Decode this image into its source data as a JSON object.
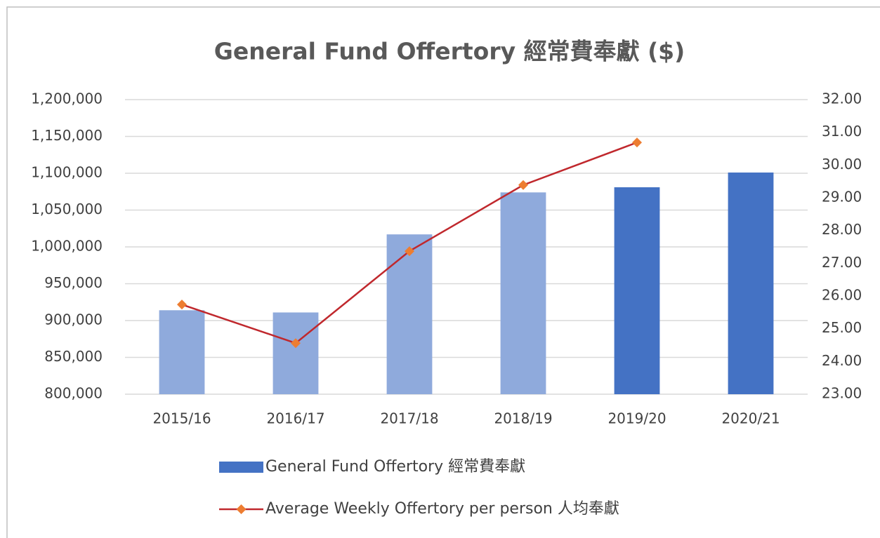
{
  "chart_data": {
    "type": "bar",
    "title": "General Fund Offertory 經常費奉獻 ($)",
    "categories": [
      "2015/16",
      "2016/17",
      "2017/18",
      "2018/19",
      "2019/20",
      "2020/21"
    ],
    "series": [
      {
        "name": "General Fund Offertory 經常費奉獻",
        "type": "bar",
        "color": "#4472c4",
        "colors": [
          "#8faadc",
          "#8faadc",
          "#8faadc",
          "#8faadc",
          "#4472c4",
          "#4472c4"
        ],
        "values": [
          914000,
          911000,
          1017000,
          1074000,
          1081000,
          1101000
        ]
      },
      {
        "name": "Average Weekly Offertory per person 人均奉獻",
        "type": "line",
        "axis": "y2",
        "color": "#c0282d",
        "marker_color": "#ed7d31",
        "values": [
          25.74,
          24.56,
          27.37,
          29.39,
          30.69,
          null
        ]
      }
    ],
    "ylim": [
      800000,
      1200000
    ],
    "yticks": [
      {
        "value": 800000,
        "label": "800,000"
      },
      {
        "value": 850000,
        "label": "850,000"
      },
      {
        "value": 900000,
        "label": "900,000"
      },
      {
        "value": 950000,
        "label": "950,000"
      },
      {
        "value": 1000000,
        "label": "1,000,000"
      },
      {
        "value": 1050000,
        "label": "1,050,000"
      },
      {
        "value": 1100000,
        "label": "1,100,000"
      },
      {
        "value": 1150000,
        "label": "1,150,000"
      },
      {
        "value": 1200000,
        "label": "1,200,000"
      }
    ],
    "y2lim": [
      23,
      32
    ],
    "y2ticks": [
      {
        "value": 23,
        "label": "23.00"
      },
      {
        "value": 24,
        "label": "24.00"
      },
      {
        "value": 25,
        "label": "25.00"
      },
      {
        "value": 26,
        "label": "26.00"
      },
      {
        "value": 27,
        "label": "27.00"
      },
      {
        "value": 28,
        "label": "28.00"
      },
      {
        "value": 29,
        "label": "29.00"
      },
      {
        "value": 30,
        "label": "30.00"
      },
      {
        "value": 31,
        "label": "31.00"
      },
      {
        "value": 32,
        "label": "32.00"
      }
    ],
    "grid": true,
    "legend": "bottom"
  }
}
